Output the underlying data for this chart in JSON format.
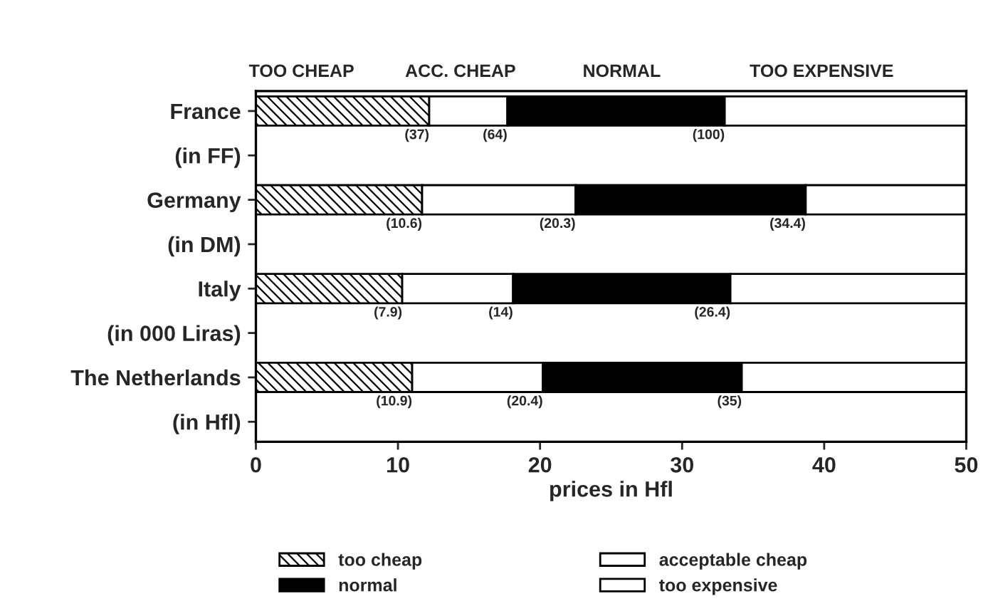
{
  "chart_data": {
    "type": "bar",
    "orientation": "horizontal",
    "stacked": true,
    "xlabel": "prices in Hfl",
    "categories": [
      "France",
      "(in FF)",
      "Germany",
      "(in DM)",
      "Italy",
      "(in 000 Liras)",
      "The Netherlands",
      "(in Hfl)"
    ],
    "series": [
      {
        "name": "too cheap",
        "color": "#000000",
        "values": [
          12.2,
          null,
          11.7,
          null,
          10.3,
          null,
          11.0,
          null
        ]
      },
      {
        "name": "acceptable cheap",
        "color": "#ffffff",
        "values": [
          5.5,
          null,
          10.8,
          null,
          7.8,
          null,
          9.2,
          null
        ]
      },
      {
        "name": "normal",
        "color": "#000000",
        "values": [
          15.3,
          null,
          16.2,
          null,
          15.3,
          null,
          14.0,
          null
        ]
      },
      {
        "name": "too expensive",
        "color": "#ffffff",
        "values": [
          17.0,
          null,
          11.3,
          null,
          16.6,
          null,
          15.8,
          null
        ]
      }
    ],
    "xlim": [
      0,
      50
    ],
    "xticks": [
      0,
      10,
      20,
      30,
      40,
      50
    ],
    "grid": false,
    "legend": "bottom",
    "annotations": [
      "TOO CHEAP",
      "ACC. CHEAP",
      "NORMAL",
      "TOO EXPENSIVE",
      {
        "text": "(37)",
        "x": 12.2,
        "y": "France"
      },
      {
        "text": "(64)",
        "x": 17.7,
        "y": "France"
      },
      {
        "text": "(100)",
        "x": 33.0,
        "y": "France"
      },
      {
        "text": "(10.6)",
        "x": 11.7,
        "y": "Germany"
      },
      {
        "text": "(20.3)",
        "x": 22.5,
        "y": "Germany"
      },
      {
        "text": "(34.4)",
        "x": 38.7,
        "y": "Germany"
      },
      {
        "text": "(7.9)",
        "x": 10.3,
        "y": "Italy"
      },
      {
        "text": "(14)",
        "x": 18.1,
        "y": "Italy"
      },
      {
        "text": "(26.4)",
        "x": 33.4,
        "y": "Italy"
      },
      {
        "text": "(10.9)",
        "x": 11.0,
        "y": "The Netherlands"
      },
      {
        "text": "(20.4)",
        "x": 20.2,
        "y": "The Netherlands"
      },
      {
        "text": "(35)",
        "x": 34.2,
        "y": "The Netherlands"
      }
    ]
  }
}
